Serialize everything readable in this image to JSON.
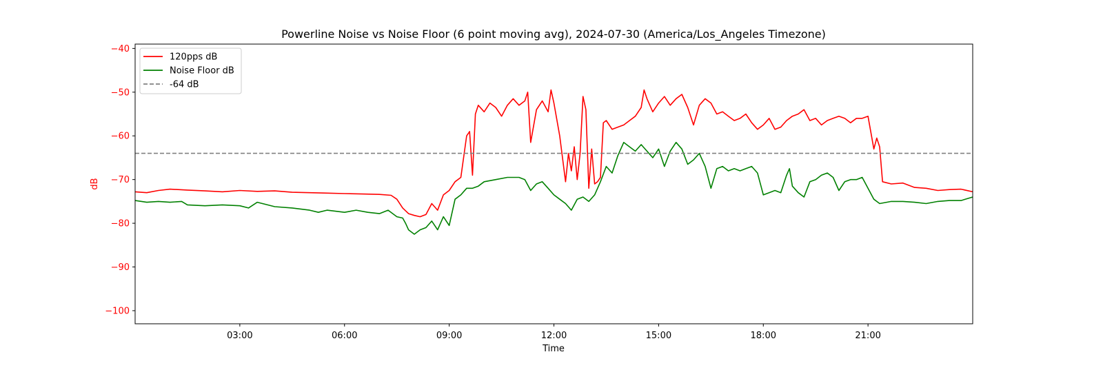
{
  "chart_data": {
    "type": "line",
    "title": "Powerline Noise vs Noise Floor (6 point moving avg), 2024-07-30 (America/Los_Angeles Timezone)",
    "xlabel": "Time",
    "ylabel": "dB",
    "x_range": [
      "00:00",
      "24:00"
    ],
    "ylim": [
      -103,
      -39
    ],
    "x_ticks": [
      "03:00",
      "06:00",
      "09:00",
      "12:00",
      "15:00",
      "18:00",
      "21:00"
    ],
    "y_ticks": [
      -40,
      -50,
      -60,
      -70,
      -80,
      -90,
      -100
    ],
    "y_tick_labels": [
      "−40",
      "−50",
      "−60",
      "−70",
      "−80",
      "−90",
      "−100"
    ],
    "grid": false,
    "legend_position": "top-left",
    "colors": {
      "axis_y": "#ff0000",
      "axis_x": "#000000"
    },
    "series": [
      {
        "name": "120pps dB",
        "color": "#ff0000",
        "style": "solid",
        "points": [
          [
            "00:00",
            -72.8
          ],
          [
            "00:20",
            -73.0
          ],
          [
            "00:40",
            -72.5
          ],
          [
            "01:00",
            -72.2
          ],
          [
            "01:30",
            -72.4
          ],
          [
            "02:00",
            -72.6
          ],
          [
            "02:30",
            -72.8
          ],
          [
            "03:00",
            -72.5
          ],
          [
            "03:30",
            -72.7
          ],
          [
            "04:00",
            -72.6
          ],
          [
            "04:30",
            -72.9
          ],
          [
            "05:00",
            -73.0
          ],
          [
            "05:30",
            -73.1
          ],
          [
            "06:00",
            -73.2
          ],
          [
            "06:30",
            -73.3
          ],
          [
            "07:00",
            -73.4
          ],
          [
            "07:20",
            -73.6
          ],
          [
            "07:30",
            -74.5
          ],
          [
            "07:40",
            -76.5
          ],
          [
            "07:50",
            -77.8
          ],
          [
            "08:00",
            -78.2
          ],
          [
            "08:10",
            -78.5
          ],
          [
            "08:20",
            -78.0
          ],
          [
            "08:30",
            -75.5
          ],
          [
            "08:40",
            -77.0
          ],
          [
            "08:50",
            -73.5
          ],
          [
            "09:00",
            -72.5
          ],
          [
            "09:10",
            -70.5
          ],
          [
            "09:20",
            -69.5
          ],
          [
            "09:30",
            -60.0
          ],
          [
            "09:35",
            -59.0
          ],
          [
            "09:40",
            -69.0
          ],
          [
            "09:45",
            -55.0
          ],
          [
            "09:50",
            -53.0
          ],
          [
            "10:00",
            -54.5
          ],
          [
            "10:10",
            -52.5
          ],
          [
            "10:20",
            -53.5
          ],
          [
            "10:30",
            -55.5
          ],
          [
            "10:40",
            -53.0
          ],
          [
            "10:50",
            -51.5
          ],
          [
            "11:00",
            -53.0
          ],
          [
            "11:10",
            -52.0
          ],
          [
            "11:15",
            -50.0
          ],
          [
            "11:20",
            -61.5
          ],
          [
            "11:30",
            -54.0
          ],
          [
            "11:40",
            -52.0
          ],
          [
            "11:50",
            -54.5
          ],
          [
            "11:55",
            -49.5
          ],
          [
            "12:00",
            -52.5
          ],
          [
            "12:10",
            -60.0
          ],
          [
            "12:20",
            -70.5
          ],
          [
            "12:25",
            -64.0
          ],
          [
            "12:30",
            -68.0
          ],
          [
            "12:35",
            -62.5
          ],
          [
            "12:40",
            -70.0
          ],
          [
            "12:45",
            -64.0
          ],
          [
            "12:50",
            -51.0
          ],
          [
            "12:55",
            -54.0
          ],
          [
            "13:00",
            -72.0
          ],
          [
            "13:05",
            -63.0
          ],
          [
            "13:10",
            -71.0
          ],
          [
            "13:15",
            -70.5
          ],
          [
            "13:20",
            -69.5
          ],
          [
            "13:25",
            -57.0
          ],
          [
            "13:30",
            -56.5
          ],
          [
            "13:40",
            -58.5
          ],
          [
            "13:50",
            -58.0
          ],
          [
            "14:00",
            -57.5
          ],
          [
            "14:10",
            -56.5
          ],
          [
            "14:20",
            -55.5
          ],
          [
            "14:30",
            -53.5
          ],
          [
            "14:35",
            -49.5
          ],
          [
            "14:40",
            -51.5
          ],
          [
            "14:50",
            -54.5
          ],
          [
            "15:00",
            -52.5
          ],
          [
            "15:10",
            -51.0
          ],
          [
            "15:20",
            -53.0
          ],
          [
            "15:30",
            -51.5
          ],
          [
            "15:40",
            -50.5
          ],
          [
            "15:50",
            -53.5
          ],
          [
            "16:00",
            -57.5
          ],
          [
            "16:10",
            -53.0
          ],
          [
            "16:20",
            -51.5
          ],
          [
            "16:30",
            -52.5
          ],
          [
            "16:40",
            -55.0
          ],
          [
            "16:50",
            -54.5
          ],
          [
            "17:00",
            -55.5
          ],
          [
            "17:10",
            -56.5
          ],
          [
            "17:20",
            -56.0
          ],
          [
            "17:30",
            -55.0
          ],
          [
            "17:40",
            -57.0
          ],
          [
            "17:50",
            -58.5
          ],
          [
            "18:00",
            -57.5
          ],
          [
            "18:10",
            -56.0
          ],
          [
            "18:20",
            -58.5
          ],
          [
            "18:30",
            -58.0
          ],
          [
            "18:40",
            -56.5
          ],
          [
            "18:50",
            -55.5
          ],
          [
            "19:00",
            -55.0
          ],
          [
            "19:10",
            -54.0
          ],
          [
            "19:20",
            -56.5
          ],
          [
            "19:30",
            -56.0
          ],
          [
            "19:40",
            -57.5
          ],
          [
            "19:50",
            -56.5
          ],
          [
            "20:00",
            -56.0
          ],
          [
            "20:10",
            -55.5
          ],
          [
            "20:20",
            -56.0
          ],
          [
            "20:30",
            -57.0
          ],
          [
            "20:40",
            -56.0
          ],
          [
            "20:50",
            -56.0
          ],
          [
            "21:00",
            -55.5
          ],
          [
            "21:10",
            -63.0
          ],
          [
            "21:15",
            -60.5
          ],
          [
            "21:20",
            -62.5
          ],
          [
            "21:25",
            -70.5
          ],
          [
            "21:40",
            -71.0
          ],
          [
            "22:00",
            -70.8
          ],
          [
            "22:20",
            -71.8
          ],
          [
            "22:40",
            -72.0
          ],
          [
            "23:00",
            -72.5
          ],
          [
            "23:20",
            -72.3
          ],
          [
            "23:40",
            -72.2
          ],
          [
            "24:00",
            -72.8
          ]
        ]
      },
      {
        "name": "Noise Floor dB",
        "color": "#008000",
        "style": "solid",
        "points": [
          [
            "00:00",
            -74.8
          ],
          [
            "00:20",
            -75.2
          ],
          [
            "00:40",
            -75.0
          ],
          [
            "01:00",
            -75.2
          ],
          [
            "01:20",
            -75.0
          ],
          [
            "01:30",
            -75.8
          ],
          [
            "02:00",
            -76.0
          ],
          [
            "02:30",
            -75.8
          ],
          [
            "03:00",
            -76.0
          ],
          [
            "03:15",
            -76.5
          ],
          [
            "03:30",
            -75.2
          ],
          [
            "04:00",
            -76.2
          ],
          [
            "04:30",
            -76.5
          ],
          [
            "05:00",
            -77.0
          ],
          [
            "05:15",
            -77.5
          ],
          [
            "05:30",
            -77.0
          ],
          [
            "06:00",
            -77.5
          ],
          [
            "06:20",
            -77.0
          ],
          [
            "06:40",
            -77.5
          ],
          [
            "07:00",
            -77.8
          ],
          [
            "07:15",
            -77.0
          ],
          [
            "07:30",
            -78.5
          ],
          [
            "07:40",
            -78.8
          ],
          [
            "07:45",
            -80.0
          ],
          [
            "07:50",
            -81.5
          ],
          [
            "08:00",
            -82.5
          ],
          [
            "08:10",
            -81.5
          ],
          [
            "08:20",
            -81.0
          ],
          [
            "08:30",
            -79.5
          ],
          [
            "08:40",
            -81.5
          ],
          [
            "08:50",
            -78.5
          ],
          [
            "09:00",
            -80.5
          ],
          [
            "09:10",
            -74.5
          ],
          [
            "09:20",
            -73.5
          ],
          [
            "09:30",
            -72.0
          ],
          [
            "09:40",
            -72.0
          ],
          [
            "09:50",
            -71.5
          ],
          [
            "10:00",
            -70.5
          ],
          [
            "10:20",
            -70.0
          ],
          [
            "10:40",
            -69.5
          ],
          [
            "11:00",
            -69.5
          ],
          [
            "11:10",
            -70.0
          ],
          [
            "11:20",
            -72.5
          ],
          [
            "11:30",
            -71.0
          ],
          [
            "11:40",
            -70.5
          ],
          [
            "11:50",
            -72.0
          ],
          [
            "12:00",
            -73.5
          ],
          [
            "12:10",
            -74.5
          ],
          [
            "12:20",
            -75.5
          ],
          [
            "12:30",
            -77.0
          ],
          [
            "12:40",
            -74.5
          ],
          [
            "12:50",
            -74.0
          ],
          [
            "13:00",
            -75.0
          ],
          [
            "13:10",
            -73.5
          ],
          [
            "13:20",
            -70.5
          ],
          [
            "13:30",
            -67.0
          ],
          [
            "13:40",
            -68.5
          ],
          [
            "13:50",
            -64.5
          ],
          [
            "14:00",
            -61.5
          ],
          [
            "14:10",
            -62.5
          ],
          [
            "14:20",
            -63.5
          ],
          [
            "14:30",
            -62.0
          ],
          [
            "14:40",
            -63.5
          ],
          [
            "14:50",
            -65.0
          ],
          [
            "15:00",
            -63.0
          ],
          [
            "15:10",
            -67.0
          ],
          [
            "15:20",
            -63.5
          ],
          [
            "15:30",
            -61.5
          ],
          [
            "15:40",
            -63.0
          ],
          [
            "15:50",
            -66.5
          ],
          [
            "16:00",
            -65.5
          ],
          [
            "16:10",
            -64.0
          ],
          [
            "16:20",
            -67.0
          ],
          [
            "16:30",
            -72.0
          ],
          [
            "16:40",
            -67.5
          ],
          [
            "16:50",
            -67.0
          ],
          [
            "17:00",
            -68.0
          ],
          [
            "17:10",
            -67.5
          ],
          [
            "17:20",
            -68.0
          ],
          [
            "17:30",
            -67.5
          ],
          [
            "17:40",
            -67.0
          ],
          [
            "17:50",
            -68.5
          ],
          [
            "18:00",
            -73.5
          ],
          [
            "18:10",
            -73.0
          ],
          [
            "18:20",
            -72.5
          ],
          [
            "18:30",
            -73.0
          ],
          [
            "18:40",
            -69.0
          ],
          [
            "18:45",
            -67.5
          ],
          [
            "18:50",
            -71.5
          ],
          [
            "19:00",
            -73.0
          ],
          [
            "19:10",
            -74.0
          ],
          [
            "19:20",
            -70.5
          ],
          [
            "19:30",
            -70.0
          ],
          [
            "19:40",
            -69.0
          ],
          [
            "19:50",
            -68.5
          ],
          [
            "20:00",
            -69.5
          ],
          [
            "20:10",
            -72.5
          ],
          [
            "20:20",
            -70.5
          ],
          [
            "20:30",
            -70.0
          ],
          [
            "20:40",
            -70.0
          ],
          [
            "20:50",
            -69.5
          ],
          [
            "21:00",
            -72.0
          ],
          [
            "21:10",
            -74.5
          ],
          [
            "21:20",
            -75.5
          ],
          [
            "21:40",
            -75.0
          ],
          [
            "22:00",
            -75.0
          ],
          [
            "22:20",
            -75.2
          ],
          [
            "22:40",
            -75.5
          ],
          [
            "23:00",
            -75.0
          ],
          [
            "23:20",
            -74.8
          ],
          [
            "23:40",
            -74.8
          ],
          [
            "24:00",
            -74.0
          ]
        ]
      },
      {
        "name": "-64 dB",
        "color": "#808080",
        "style": "dashed",
        "points": [
          [
            "00:00",
            -64
          ],
          [
            "24:00",
            -64
          ]
        ]
      }
    ]
  }
}
